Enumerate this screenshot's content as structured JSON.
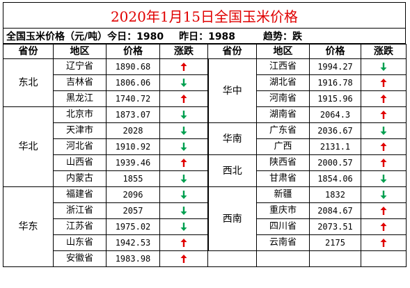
{
  "title": "2020年1月15日全国玉米价格",
  "summary": {
    "label": "全国玉米价格（元/吨）今日：1980",
    "yesterday": "昨日：1988",
    "trend": "趋势：跌"
  },
  "headers": [
    "省份",
    "地区",
    "价格",
    "涨跌",
    "省份",
    "地区",
    "价格",
    "涨跌"
  ],
  "colors": {
    "title": "#e00000",
    "up": "#e00000",
    "down": "#00a050"
  },
  "left": [
    {
      "region": "东北",
      "rows": [
        {
          "area": "辽宁省",
          "price": "1890.68",
          "trend": "up"
        },
        {
          "area": "吉林省",
          "price": "1806.06",
          "trend": "down"
        },
        {
          "area": "黑龙江",
          "price": "1740.72",
          "trend": "up"
        }
      ]
    },
    {
      "region": "华北",
      "rows": [
        {
          "area": "北京市",
          "price": "1873.07",
          "trend": "down"
        },
        {
          "area": "天津市",
          "price": "2028",
          "trend": "down"
        },
        {
          "area": "河北省",
          "price": "1910.92",
          "trend": "down"
        },
        {
          "area": "山西省",
          "price": "1939.46",
          "trend": "up"
        },
        {
          "area": "内蒙古",
          "price": "1855",
          "trend": "down"
        }
      ]
    },
    {
      "region": "华东",
      "rows": [
        {
          "area": "福建省",
          "price": "2096",
          "trend": "down"
        },
        {
          "area": "浙江省",
          "price": "2057",
          "trend": "down"
        },
        {
          "area": "江苏省",
          "price": "1975.02",
          "trend": "down"
        },
        {
          "area": "山东省",
          "price": "1942.53",
          "trend": "up"
        },
        {
          "area": "安徽省",
          "price": "1983.98",
          "trend": "up"
        }
      ]
    }
  ],
  "right": [
    {
      "region": "华中",
      "rows": [
        {
          "area": "江西省",
          "price": "1994.27",
          "trend": "down"
        },
        {
          "area": "湖北省",
          "price": "1916.78",
          "trend": "up"
        },
        {
          "area": "河南省",
          "price": "1915.96",
          "trend": "up"
        },
        {
          "area": "湖南省",
          "price": "2064.3",
          "trend": "up"
        }
      ]
    },
    {
      "region": "华南",
      "rows": [
        {
          "area": "广东省",
          "price": "2036.67",
          "trend": "down"
        },
        {
          "area": "广西",
          "price": "2131.1",
          "trend": "up"
        }
      ]
    },
    {
      "region": "西北",
      "rows": [
        {
          "area": "陕西省",
          "price": "2000.57",
          "trend": "up"
        },
        {
          "area": "甘肃省",
          "price": "1854.06",
          "trend": "down"
        }
      ]
    },
    {
      "region": "西南",
      "rows": [
        {
          "area": "新疆",
          "price": "1832",
          "trend": "down"
        },
        {
          "area": "重庆市",
          "price": "2084.67",
          "trend": "up"
        },
        {
          "area": "四川省",
          "price": "2073.51",
          "trend": "up"
        },
        {
          "area": "云南省",
          "price": "2175",
          "trend": "up"
        }
      ]
    }
  ]
}
